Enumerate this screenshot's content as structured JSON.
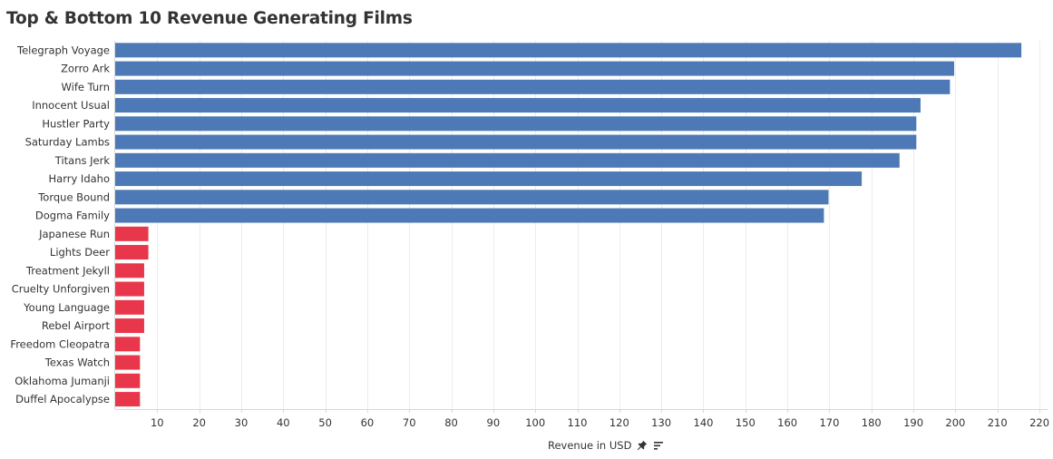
{
  "chart_data": {
    "type": "bar",
    "orientation": "horizontal",
    "title": "Top & Bottom 10 Revenue Generating Films",
    "xlabel": "Revenue in USD",
    "ylabel": "",
    "xlim": [
      0,
      222
    ],
    "x_ticks": [
      10,
      20,
      30,
      40,
      50,
      60,
      70,
      80,
      90,
      100,
      110,
      120,
      130,
      140,
      150,
      160,
      170,
      180,
      190,
      200,
      210,
      220
    ],
    "grid": true,
    "legend": "none",
    "categories": [
      "Telegraph Voyage",
      "Zorro Ark",
      "Wife Turn",
      "Innocent Usual",
      "Hustler Party",
      "Saturday Lambs",
      "Titans Jerk",
      "Harry Idaho",
      "Torque Bound",
      "Dogma Family",
      "Japanese Run",
      "Lights Deer",
      "Treatment Jekyll",
      "Cruelty Unforgiven",
      "Young Language",
      "Rebel Airport",
      "Freedom Cleopatra",
      "Texas Watch",
      "Oklahoma Jumanji",
      "Duffel Apocalypse"
    ],
    "values": [
      215.7,
      199.7,
      198.7,
      191.7,
      190.7,
      190.7,
      186.7,
      177.7,
      169.8,
      168.7,
      7.9,
      7.9,
      6.9,
      6.9,
      6.9,
      6.9,
      5.9,
      5.9,
      5.9,
      5.9
    ],
    "groups": [
      "top",
      "top",
      "top",
      "top",
      "top",
      "top",
      "top",
      "top",
      "top",
      "top",
      "bottom",
      "bottom",
      "bottom",
      "bottom",
      "bottom",
      "bottom",
      "bottom",
      "bottom",
      "bottom",
      "bottom"
    ],
    "colors": {
      "top": "#4e79b7",
      "bottom": "#e8374b"
    }
  },
  "ui": {
    "axis_icons": [
      "pin-icon",
      "sort-icon"
    ],
    "colors": {
      "text": "#333333",
      "grid": "#ececec",
      "axis": "#d9d9d9"
    }
  }
}
